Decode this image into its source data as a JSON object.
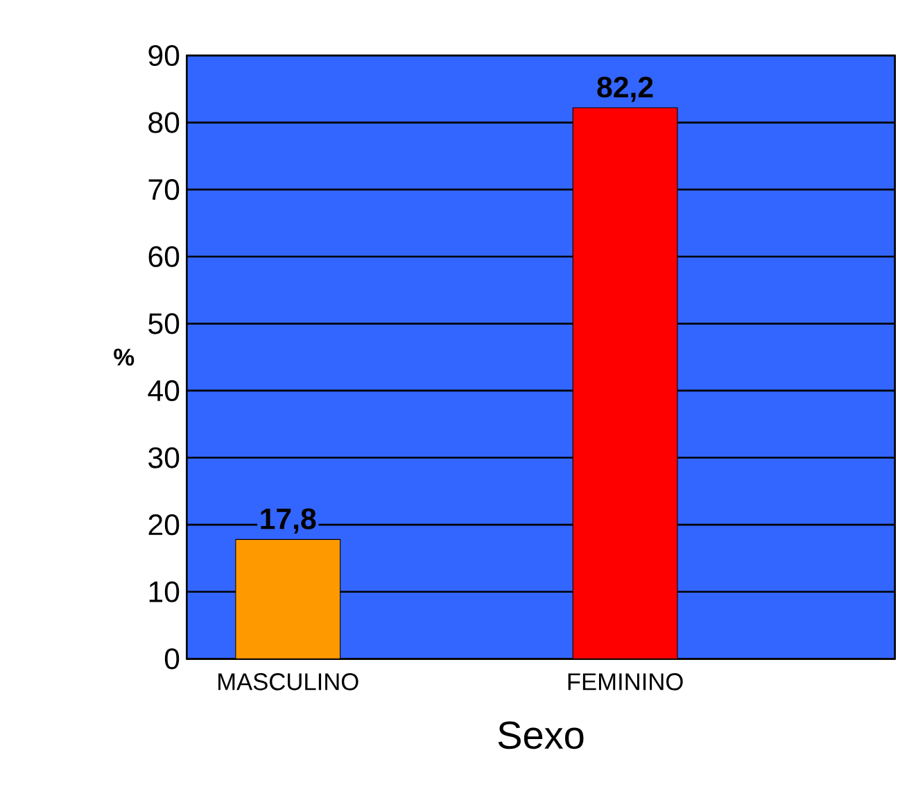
{
  "chart_data": {
    "type": "bar",
    "xlabel": "Sexo",
    "ylabel": "%",
    "categories": [
      "MASCULINO",
      "FEMININO"
    ],
    "values": [
      17.8,
      82.2
    ],
    "colors": [
      "#ff9900",
      "#ff0000"
    ],
    "value_labels": [
      "17,8",
      "82,2"
    ],
    "ylim": [
      0,
      90
    ],
    "yticks": [
      0,
      10,
      20,
      30,
      40,
      50,
      60,
      70,
      80,
      90
    ],
    "grid": "y"
  }
}
